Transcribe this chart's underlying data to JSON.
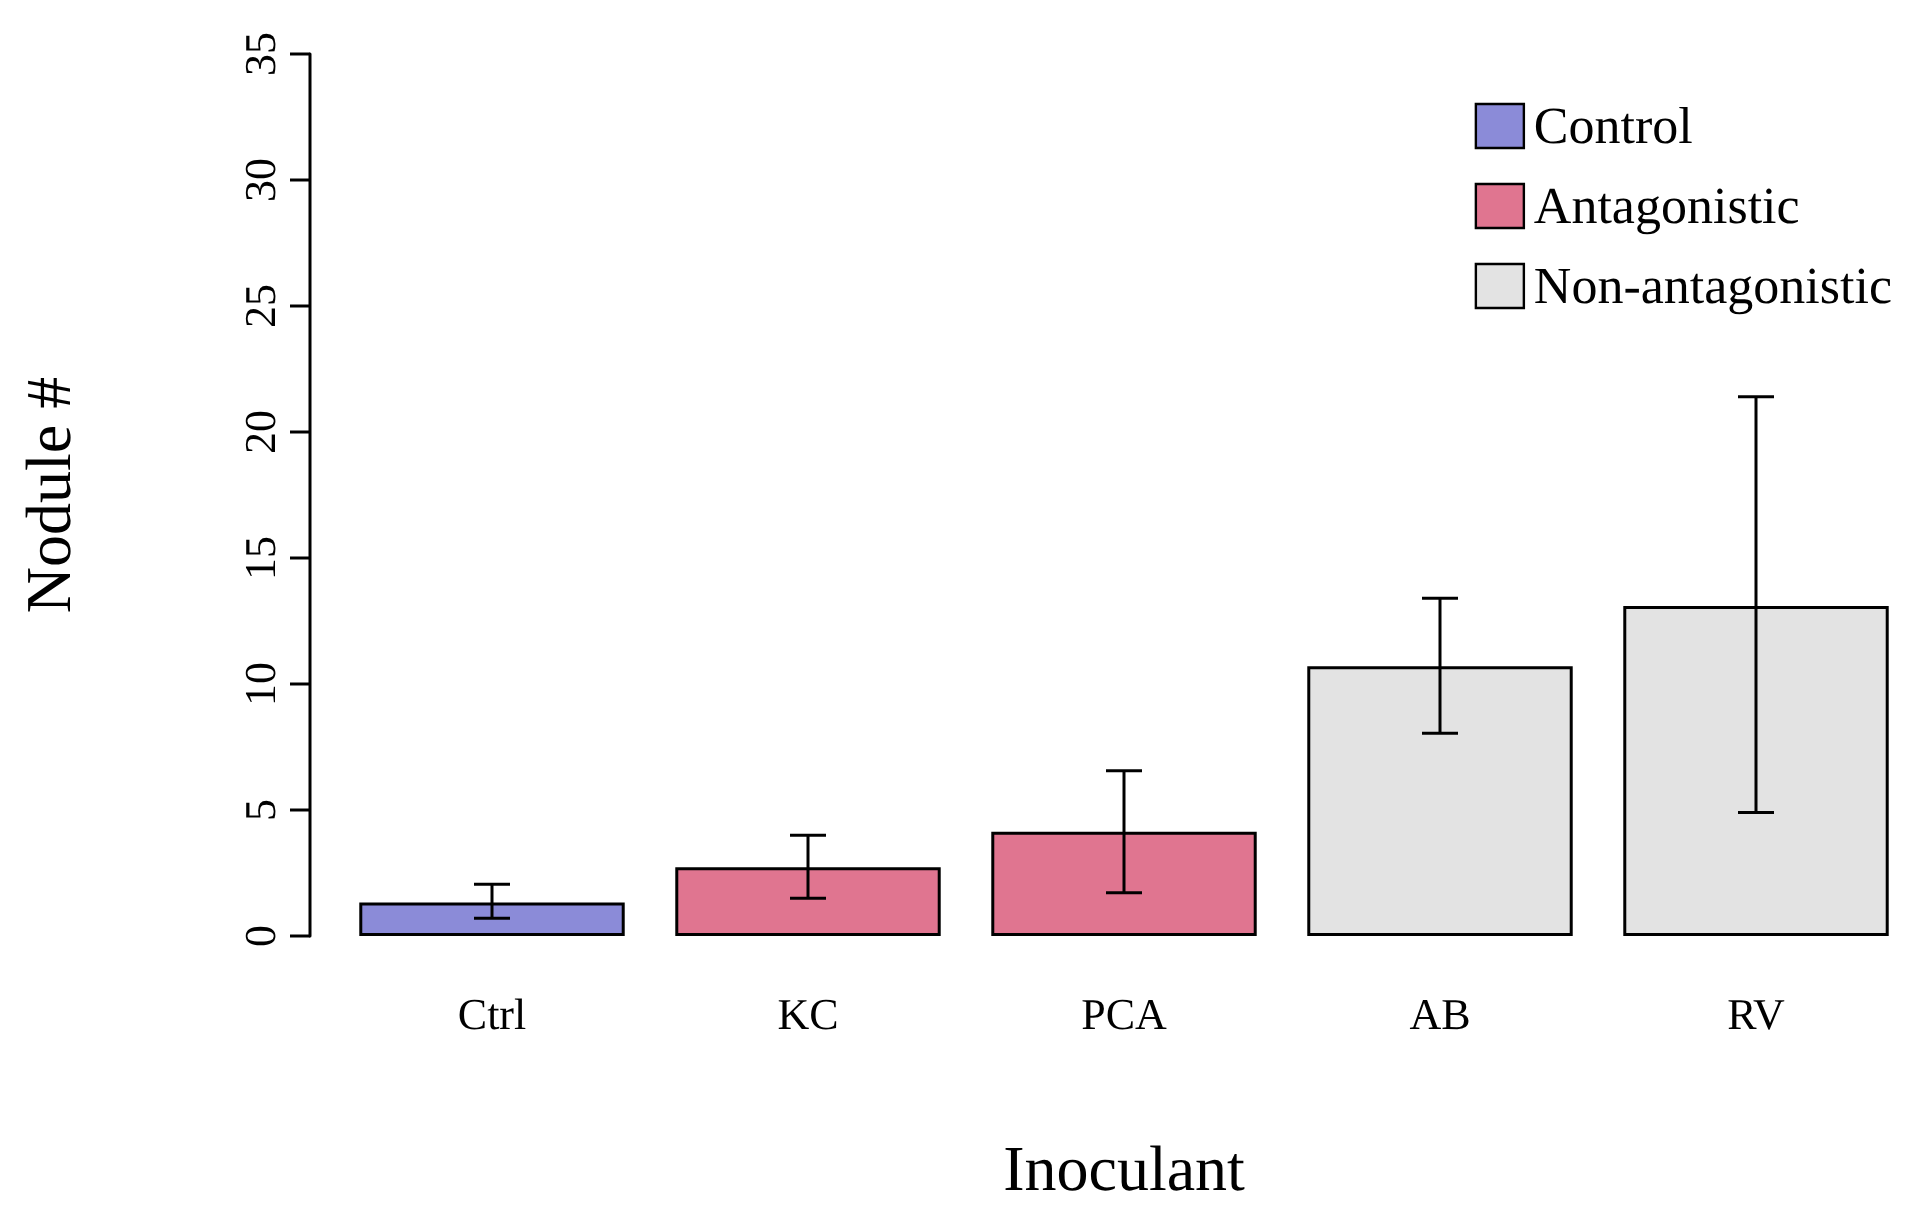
{
  "chart_data": {
    "type": "bar",
    "xlabel": "Inoculant",
    "ylabel": "Nodule #",
    "categories": [
      "Ctrl",
      "KC",
      "PCA",
      "AB",
      "RV"
    ],
    "series": [
      {
        "name": "Control",
        "color": "#8b8bd8",
        "values": [
          1.33,
          null,
          null,
          null,
          null
        ],
        "errors": [
          [
            0.7,
            2.05
          ],
          null,
          null,
          null,
          null
        ]
      },
      {
        "name": "Antagonistic",
        "color": "#e07590",
        "values": [
          null,
          2.73,
          4.14,
          null,
          null
        ],
        "errors": [
          null,
          [
            1.5,
            4.0
          ],
          [
            1.72,
            6.56
          ],
          null,
          null
        ]
      },
      {
        "name": "Non-antagonistic",
        "color": "#e3e3e3",
        "values": [
          null,
          null,
          null,
          10.7,
          13.1
        ],
        "errors": [
          null,
          null,
          null,
          [
            8.05,
            13.4
          ],
          [
            4.9,
            21.4
          ]
        ]
      }
    ],
    "ylim": [
      0,
      35
    ],
    "yticks": [
      0,
      5,
      10,
      15,
      20,
      25,
      30,
      35
    ],
    "grid": false,
    "legend": "top right"
  }
}
